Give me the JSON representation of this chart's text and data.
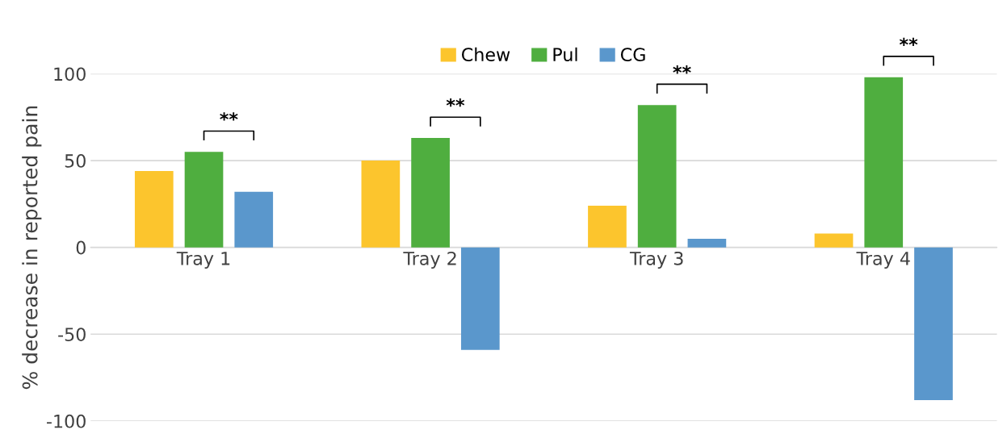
{
  "chart_data": {
    "type": "bar",
    "ylabel": "% decrease in reported pain",
    "categories": [
      "Tray 1",
      "Tray 2",
      "Tray 3",
      "Tray 4"
    ],
    "series": [
      {
        "name": "Chew",
        "color": "#fcc52d",
        "values": [
          44,
          50,
          24,
          8
        ]
      },
      {
        "name": "Pul",
        "color": "#4fae3f",
        "values": [
          55,
          63,
          82,
          98
        ]
      },
      {
        "name": "CG",
        "color": "#5a97cc",
        "values": [
          32,
          -59,
          5,
          -88
        ]
      }
    ],
    "ylim": [
      -100,
      100
    ],
    "yticks": [
      -100,
      -50,
      0,
      50,
      100
    ],
    "grid": "y",
    "legend": "top",
    "annotations": [
      "**",
      "**",
      "**",
      "**"
    ]
  }
}
